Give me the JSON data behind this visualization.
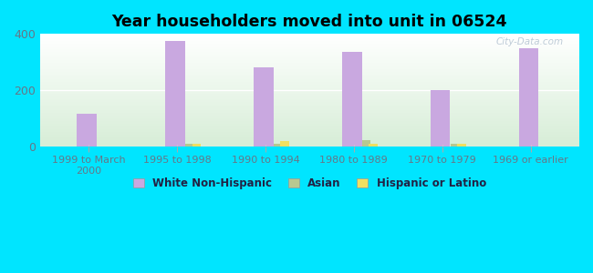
{
  "title": "Year householders moved into unit in 06524",
  "categories": [
    "1999 to March\n2000",
    "1995 to 1998",
    "1990 to 1994",
    "1980 to 1989",
    "1970 to 1979",
    "1969 or earlier"
  ],
  "white_non_hispanic": [
    115,
    375,
    280,
    335,
    200,
    350
  ],
  "asian": [
    0,
    8,
    8,
    22,
    8,
    0
  ],
  "hispanic_or_latino": [
    0,
    8,
    18,
    10,
    8,
    0
  ],
  "bar_width": 0.18,
  "colors": {
    "white_non_hispanic": "#c9a8e0",
    "asian": "#b8c890",
    "hispanic_or_latino": "#f0e060"
  },
  "background_outer": "#00e5ff",
  "ylim": [
    0,
    400
  ],
  "yticks": [
    0,
    200,
    400
  ],
  "watermark": "City-Data.com",
  "legend_labels": [
    "White Non-Hispanic",
    "Asian",
    "Hispanic or Latino"
  ]
}
